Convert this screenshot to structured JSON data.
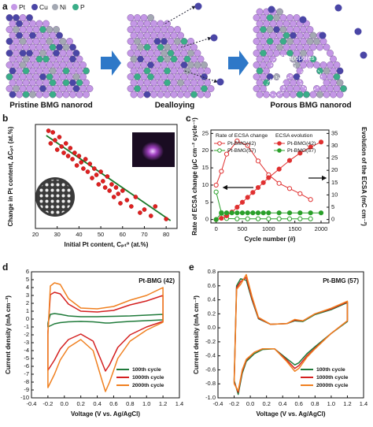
{
  "illustration": {
    "panel": "a",
    "legend": [
      "Pt",
      "Cu",
      "Ni",
      "P"
    ],
    "steps": [
      "Pristine BMG nanorod",
      "Dealloying",
      "Porous BMG nanorod"
    ],
    "annotation": "Nanopores"
  },
  "chart_data": [
    {
      "type": "scatter",
      "panel": "b",
      "xlabel": "Initial Pt content, Cₚₜ⁰ (at.%)",
      "ylabel": "Change in Pt content, ΔCₚₜ (at.%)",
      "x": [
        26,
        27,
        28,
        29,
        30,
        31,
        32,
        33,
        34,
        35,
        36,
        37,
        38,
        39,
        40,
        41,
        42,
        43,
        44,
        45,
        46,
        47,
        48,
        49,
        50,
        51,
        52,
        53,
        54,
        55,
        56,
        57,
        58,
        59,
        60,
        62,
        64,
        66,
        68,
        70,
        73,
        75,
        80
      ],
      "values": [
        29,
        25,
        28.5,
        26,
        23,
        27,
        24,
        22,
        25,
        21,
        23.5,
        20,
        22,
        18,
        21,
        19,
        17,
        20,
        16,
        18.5,
        14,
        17,
        15,
        12,
        16,
        13,
        11,
        14.5,
        10,
        12,
        8,
        11,
        9,
        6,
        10,
        7,
        5,
        8,
        3,
        4,
        2,
        5,
        1
      ],
      "color": "#e02020",
      "fit": {
        "x": [
          25,
          82
        ],
        "y": [
          27.5,
          0.5
        ],
        "color": "#1a7a2a"
      },
      "xlim": [
        20,
        85
      ],
      "xticks": [
        20,
        30,
        40,
        50,
        60,
        70,
        80
      ],
      "ylim": [
        -2,
        31
      ]
    },
    {
      "type": "line",
      "panel": "c",
      "xlabel": "Cycle number (#)",
      "ylabel": "Rate of ECSA change (μC cm⁻² cycle⁻¹)",
      "y2label": "Evolution of the ECSA (mC cm⁻²)",
      "xlim": [
        -100,
        2150
      ],
      "xticks": [
        0,
        500,
        1000,
        1500,
        2000
      ],
      "ylim": [
        -1,
        26
      ],
      "yticks": [
        0,
        5,
        10,
        15,
        20,
        25
      ],
      "y2lim": [
        -1.4,
        36.4
      ],
      "y2ticks": [
        0,
        5,
        10,
        15,
        20,
        25,
        30,
        35
      ],
      "legend": "upper left",
      "legend_titles": [
        "Rate of ECSA change",
        "ECSA evolution"
      ],
      "series": [
        {
          "name": "Pt-BMG(42)",
          "color": "#e03030",
          "marker": "open",
          "legend_group": 0,
          "x": [
            0,
            100,
            200,
            400,
            600,
            800,
            1000,
            1200,
            1400,
            1600,
            1800
          ],
          "values": [
            10,
            14,
            19,
            22.8,
            21.5,
            17,
            13,
            10.5,
            9,
            7.5,
            5.8
          ]
        },
        {
          "name": "Pt-BMG(57)",
          "color": "#2aa02a",
          "marker": "open",
          "legend_group": 0,
          "x": [
            0,
            100,
            200,
            400,
            600,
            800,
            1000,
            1200,
            1400,
            1600,
            1800
          ],
          "values": [
            8,
            2,
            0.3,
            0.2,
            0.2,
            0.2,
            0.2,
            0.2,
            0.2,
            0.2,
            0.2
          ]
        },
        {
          "name": "Pt-BMG(42)",
          "color": "#e03030",
          "marker": "filled",
          "legend_group": 1,
          "axis": "y2",
          "x": [
            0,
            100,
            200,
            300,
            400,
            500,
            600,
            700,
            800,
            900,
            1000,
            1200,
            1400,
            1600,
            1800,
            2000
          ],
          "values": [
            0,
            0.5,
            1.5,
            3,
            5,
            7,
            9,
            11,
            13,
            15,
            17,
            20.5,
            24,
            27,
            29.5,
            31.5
          ]
        },
        {
          "name": "Pt-BMG(57)",
          "color": "#2aa02a",
          "marker": "filled",
          "legend_group": 1,
          "axis": "y2",
          "x": [
            0,
            100,
            200,
            300,
            400,
            500,
            600,
            700,
            800,
            900,
            1000,
            1200,
            1400,
            1600,
            1800,
            2000
          ],
          "values": [
            0,
            2.5,
            2.7,
            2.7,
            2.7,
            2.7,
            2.7,
            2.7,
            2.7,
            2.7,
            2.7,
            2.7,
            2.7,
            2.7,
            2.7,
            2.7
          ]
        }
      ]
    },
    {
      "type": "line",
      "panel": "d",
      "annotation": "Pt-BMG (42)",
      "xlabel": "Voltage (V vs. Ag/AgCl)",
      "ylabel": "Current density (mA cm⁻²)",
      "xlim": [
        -0.4,
        1.4
      ],
      "xticks": [
        -0.4,
        -0.2,
        {
          "value": 0,
          "label": "0.0"
        },
        0.2,
        0.4,
        0.6,
        0.8,
        {
          "value": 1,
          "label": "1.0"
        },
        1.2,
        1.4
      ],
      "ylim": [
        -10,
        6
      ],
      "yticks": [
        -10,
        -9,
        -8,
        -7,
        -6,
        -5,
        -4,
        -3,
        -2,
        -1,
        0,
        1,
        2,
        3,
        4,
        5,
        6
      ],
      "legend": "lower right",
      "x": [
        -0.2,
        -0.17,
        -0.12,
        -0.05,
        0.05,
        0.2,
        0.4,
        0.6,
        0.8,
        1.0,
        1.2,
        1.2,
        1.0,
        0.8,
        0.65,
        0.55,
        0.5,
        0.45,
        0.35,
        0.2,
        0.05,
        -0.05,
        -0.12,
        -0.2,
        -0.2
      ],
      "series": [
        {
          "name": "100th cycle",
          "color": "#1f7a3a",
          "values": [
            -0.5,
            0.6,
            0.7,
            0.6,
            0.4,
            0.3,
            0.3,
            0.35,
            0.4,
            0.5,
            0.6,
            -0.1,
            -0.2,
            -0.3,
            -0.4,
            -0.5,
            -0.5,
            -0.45,
            -0.35,
            -0.3,
            -0.35,
            -0.45,
            -0.6,
            -1.0,
            -0.5
          ]
        },
        {
          "name": "1000th cycle",
          "color": "#d42020",
          "values": [
            -1.6,
            3.1,
            3.4,
            3.2,
            1.9,
            1.0,
            0.9,
            1.1,
            1.8,
            2.3,
            3.0,
            -0.3,
            -1.0,
            -2.0,
            -3.6,
            -5.8,
            -6.6,
            -5.3,
            -2.8,
            -1.9,
            -2.6,
            -3.8,
            -5.2,
            -6.5,
            -1.6
          ]
        },
        {
          "name": "2000th cycle",
          "color": "#f08020",
          "values": [
            -2,
            4.2,
            4.6,
            4.4,
            2.6,
            1.4,
            1.3,
            1.6,
            2.4,
            3.0,
            4.0,
            -0.4,
            -1.4,
            -2.8,
            -5,
            -8,
            -9.2,
            -7.5,
            -4,
            -2.6,
            -3.6,
            -5.2,
            -7,
            -8.7,
            -2
          ]
        }
      ]
    },
    {
      "type": "line",
      "panel": "e",
      "annotation": "Pt-BMG (57)",
      "xlabel": "Voltage (V vs. Ag/AgCl)",
      "ylabel": "Current density (mA cm⁻²)",
      "xlim": [
        -0.4,
        1.4
      ],
      "xticks": [
        -0.4,
        -0.2,
        {
          "value": 0,
          "label": "0.0"
        },
        0.2,
        0.4,
        0.6,
        0.8,
        {
          "value": 1,
          "label": "1.0"
        },
        1.2,
        1.4
      ],
      "ylim": [
        -1,
        0.8
      ],
      "yticks": [
        {
          "value": -1,
          "label": "-1.0"
        },
        -0.8,
        -0.6,
        -0.4,
        -0.2,
        {
          "value": 0,
          "label": "0.0"
        },
        0.2,
        0.4,
        0.6,
        0.8
      ],
      "legend": "lower right",
      "x": [
        -0.2,
        -0.17,
        -0.12,
        -0.05,
        0.02,
        0.1,
        0.25,
        0.45,
        0.55,
        0.65,
        0.8,
        1.0,
        1.2,
        1.2,
        1.0,
        0.8,
        0.7,
        0.6,
        0.55,
        0.45,
        0.3,
        0.15,
        0.05,
        -0.05,
        -0.1,
        -0.15,
        -0.2
      ],
      "series": [
        {
          "name": "100th cycle",
          "color": "#1f7a3a",
          "values": [
            -0.75,
            0.6,
            0.7,
            0.68,
            0.4,
            0.13,
            0.05,
            0.06,
            0.1,
            0.09,
            0.19,
            0.26,
            0.36,
            0.09,
            -0.08,
            -0.27,
            -0.37,
            -0.5,
            -0.53,
            -0.44,
            -0.3,
            -0.31,
            -0.37,
            -0.48,
            -0.65,
            -0.95,
            -0.75
          ]
        },
        {
          "name": "1000th cycle",
          "color": "#d42020",
          "values": [
            -0.78,
            0.57,
            0.66,
            0.72,
            0.42,
            0.14,
            0.05,
            0.06,
            0.11,
            0.1,
            0.2,
            0.27,
            0.37,
            0.1,
            -0.08,
            -0.29,
            -0.4,
            -0.54,
            -0.58,
            -0.46,
            -0.3,
            -0.3,
            -0.35,
            -0.46,
            -0.62,
            -0.92,
            -0.78
          ]
        },
        {
          "name": "2000th cycle",
          "color": "#f08020",
          "values": [
            -0.8,
            0.55,
            0.62,
            0.76,
            0.45,
            0.15,
            0.05,
            0.06,
            0.12,
            0.1,
            0.2,
            0.28,
            0.38,
            0.1,
            -0.08,
            -0.3,
            -0.42,
            -0.58,
            -0.62,
            -0.48,
            -0.3,
            -0.3,
            -0.35,
            -0.45,
            -0.6,
            -0.9,
            -0.8
          ]
        }
      ]
    }
  ]
}
